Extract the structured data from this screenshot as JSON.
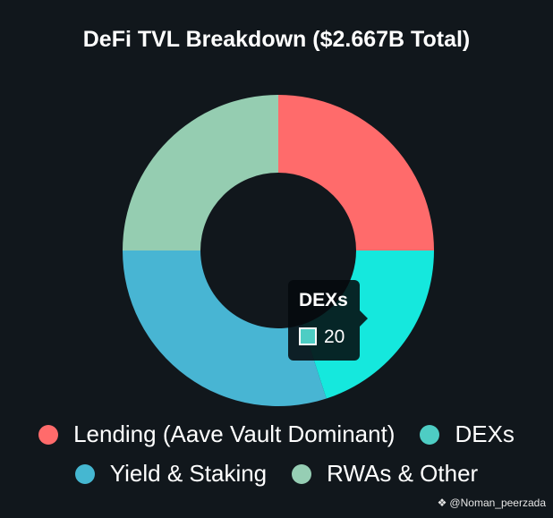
{
  "chart_data": {
    "type": "pie",
    "title": "DeFi TVL Breakdown ($2.667B Total)",
    "donut": true,
    "slices": [
      {
        "label": "Lending (Aave Vault Dominant)",
        "value": 25,
        "color": "#ff6b6b"
      },
      {
        "label": "DEXs",
        "value": 20,
        "color": "#15e8dd"
      },
      {
        "label": "Yield & Staking",
        "value": 30,
        "color": "#48b5d3"
      },
      {
        "label": "RWAs & Other",
        "value": 25,
        "color": "#95cdb1"
      }
    ],
    "legend": [
      {
        "label": "Lending (Aave Vault Dominant)",
        "color": "#ff6b6b"
      },
      {
        "label": "DEXs",
        "color": "#4ecdc4"
      },
      {
        "label": "Yield & Staking",
        "color": "#45b7d1"
      },
      {
        "label": "RWAs & Other",
        "color": "#96ceb4"
      }
    ],
    "legend_position": "bottom",
    "tooltip": {
      "label": "DEXs",
      "value": "20",
      "color": "#4ecdc4"
    }
  },
  "watermark": {
    "icon": "binance-icon",
    "text": "@Noman_peerzada"
  }
}
